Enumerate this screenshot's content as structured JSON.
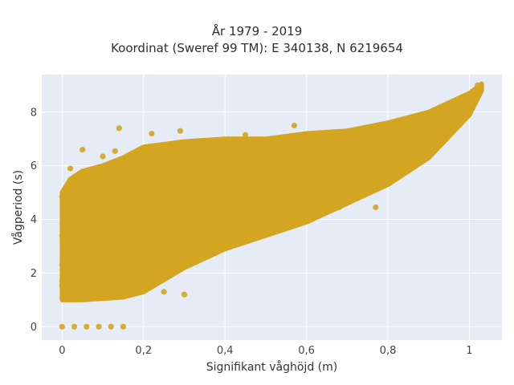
{
  "chart_data": {
    "type": "scatter",
    "title": "År 1979 - 2019",
    "subtitle": "Koordinat (Sweref 99 TM): E 340138, N 6219654",
    "xlabel": "Signifikant våghöjd (m)",
    "ylabel": "Vågperiod (s)",
    "xlim": [
      -0.05,
      1.08
    ],
    "ylim": [
      -0.5,
      9.4
    ],
    "x_ticks": [
      0,
      0.2,
      0.4,
      0.6,
      0.8,
      1.0
    ],
    "x_tick_labels": [
      "0",
      "0,2",
      "0,4",
      "0,6",
      "0,8",
      "1"
    ],
    "y_ticks": [
      0,
      2,
      4,
      6,
      8
    ],
    "y_tick_labels": [
      "0",
      "2",
      "4",
      "6",
      "8"
    ],
    "grid": true,
    "legend": "none",
    "colors": {
      "marker": "#d4a520",
      "plot_bg": "#e5ecf6",
      "grid": "#ffffff"
    },
    "cloud_envelope": {
      "x": [
        0.0,
        0.02,
        0.05,
        0.1,
        0.15,
        0.2,
        0.3,
        0.4,
        0.5,
        0.6,
        0.7,
        0.8,
        0.9,
        1.0,
        1.03
      ],
      "y_lower": [
        1.0,
        1.0,
        1.0,
        1.05,
        1.1,
        1.3,
        2.2,
        2.9,
        3.4,
        3.9,
        4.6,
        5.3,
        6.3,
        7.9,
        8.8
      ],
      "y_upper": [
        5.0,
        5.5,
        5.8,
        6.0,
        6.3,
        6.7,
        6.9,
        7.0,
        7.0,
        7.2,
        7.3,
        7.6,
        8.0,
        8.7,
        9.05
      ]
    },
    "points": [
      {
        "x": 0.0,
        "y": 0.0
      },
      {
        "x": 0.03,
        "y": 0.0
      },
      {
        "x": 0.06,
        "y": 0.0
      },
      {
        "x": 0.09,
        "y": 0.0
      },
      {
        "x": 0.12,
        "y": 0.0
      },
      {
        "x": 0.15,
        "y": 0.0
      },
      {
        "x": 0.0,
        "y": 1.55
      },
      {
        "x": 0.0,
        "y": 1.7
      },
      {
        "x": 0.0,
        "y": 2.3
      },
      {
        "x": 0.0,
        "y": 3.4
      },
      {
        "x": 0.0,
        "y": 4.85
      },
      {
        "x": 0.02,
        "y": 5.9
      },
      {
        "x": 0.05,
        "y": 6.6
      },
      {
        "x": 0.1,
        "y": 6.35
      },
      {
        "x": 0.13,
        "y": 6.55
      },
      {
        "x": 0.14,
        "y": 7.4
      },
      {
        "x": 0.19,
        "y": 1.5
      },
      {
        "x": 0.25,
        "y": 1.3
      },
      {
        "x": 0.3,
        "y": 1.2
      },
      {
        "x": 0.22,
        "y": 7.2
      },
      {
        "x": 0.29,
        "y": 7.3
      },
      {
        "x": 0.45,
        "y": 7.15
      },
      {
        "x": 0.57,
        "y": 7.5
      },
      {
        "x": 0.68,
        "y": 4.45
      },
      {
        "x": 0.77,
        "y": 4.45
      },
      {
        "x": 0.82,
        "y": 7.6
      },
      {
        "x": 0.88,
        "y": 6.2
      },
      {
        "x": 0.93,
        "y": 8.2
      },
      {
        "x": 1.0,
        "y": 8.65
      },
      {
        "x": 1.02,
        "y": 9.0
      }
    ]
  }
}
